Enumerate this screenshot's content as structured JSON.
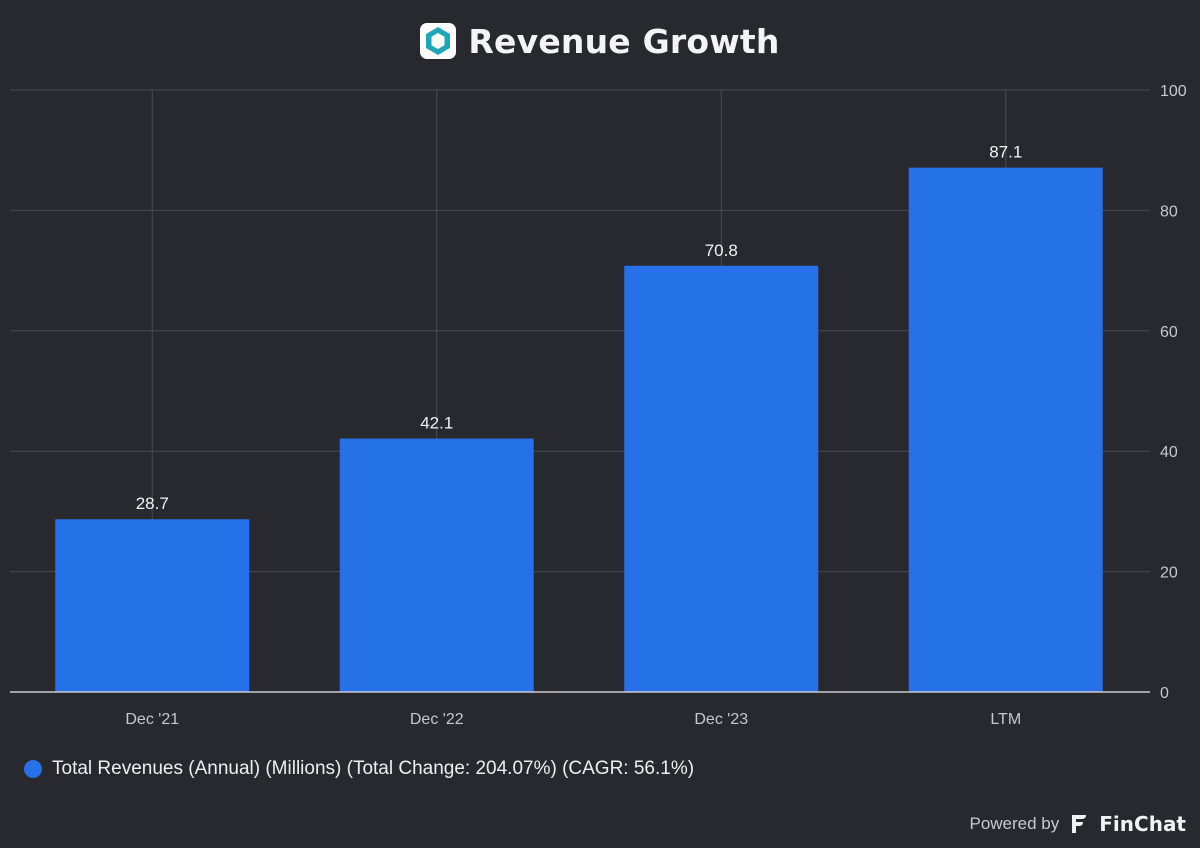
{
  "header": {
    "title": "Revenue Growth",
    "logo_icon": "hexagon-logo-icon"
  },
  "chart_data": {
    "type": "bar",
    "title": "Revenue Growth",
    "categories": [
      "Dec '21",
      "Dec '22",
      "Dec '23",
      "LTM"
    ],
    "series": [
      {
        "name": "Total Revenues (Annual) (Millions) (Total Change: 204.07%) (CAGR: 56.1%)",
        "values": [
          28.7,
          42.1,
          70.8,
          87.1
        ],
        "color": "#2670e8"
      }
    ],
    "value_labels": [
      "28.7",
      "42.1",
      "70.8",
      "87.1"
    ],
    "y_ticks": [
      "0",
      "20",
      "40",
      "60",
      "80",
      "100"
    ],
    "ylim": [
      0,
      100
    ],
    "y_axis_side": "right",
    "grid": true,
    "legend_position": "bottom-left"
  },
  "legend": {
    "label": "Total Revenues (Annual) (Millions) (Total Change: 204.07%) (CAGR: 56.1%)",
    "color": "#2670e8"
  },
  "footer": {
    "powered_by": "Powered by",
    "brand": "FinChat",
    "brand_icon": "finchat-logo-icon"
  },
  "colors": {
    "background": "#28292f",
    "grid": "#4a4b52",
    "bar": "#2670e8",
    "text": "#e8e8ec",
    "axis_text": "#c8c8cd"
  }
}
